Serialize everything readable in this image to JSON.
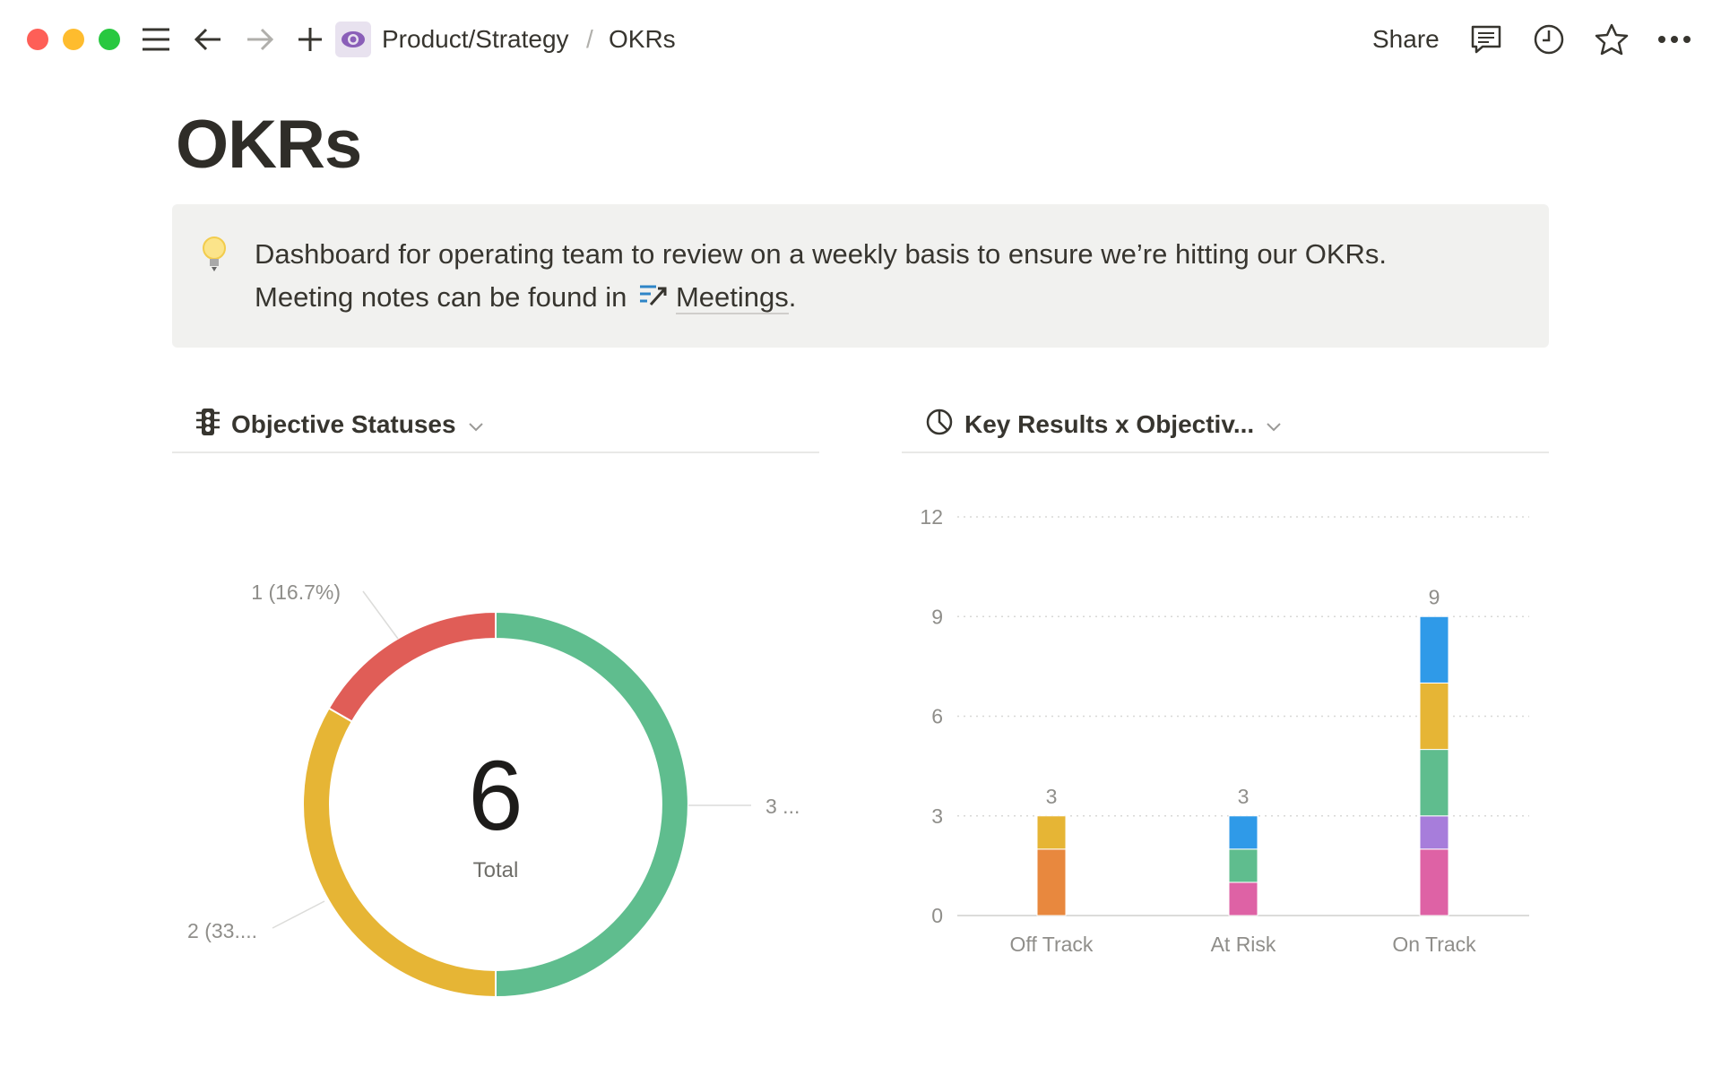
{
  "topbar": {
    "breadcrumb": [
      "Product/Strategy",
      "OKRs"
    ],
    "separator": "/",
    "share_label": "Share",
    "icons": [
      "menu-icon",
      "back-arrow-icon",
      "forward-arrow-icon",
      "plus-icon",
      "eye-icon",
      "comment-icon",
      "clock-icon",
      "star-icon",
      "more-icon"
    ]
  },
  "page": {
    "title": "OKRs",
    "callout": {
      "icon": "lightbulb-icon",
      "line1": "Dashboard for operating team to review on a weekly basis to ensure we’re hitting our OKRs.",
      "line2_prefix": "Meeting notes can be found in",
      "link_label": "Meetings",
      "line2_suffix": "."
    }
  },
  "views": [
    {
      "title": "Objective Statuses",
      "icon": "traffic-light-icon"
    },
    {
      "title": "Key Results x Objectiv...",
      "icon": "pie-chart-icon"
    }
  ],
  "chart_data": [
    {
      "type": "pie",
      "donut": true,
      "center_value": "6",
      "center_label": "Total",
      "slices": [
        {
          "value": 3,
          "label": "3 ...",
          "color": "#5fbd8e"
        },
        {
          "value": 2,
          "label": "2 (33....",
          "color": "#e6b535"
        },
        {
          "value": 1,
          "label": "1 (16.7%)",
          "color": "#e05d57"
        }
      ]
    },
    {
      "type": "bar",
      "stacked": true,
      "categories": [
        "Off Track",
        "At Risk",
        "On Track"
      ],
      "totals": [
        "3",
        "3",
        "9"
      ],
      "ylim": [
        0,
        12
      ],
      "yticks": [
        "0",
        "3",
        "6",
        "9",
        "12"
      ],
      "grid": true,
      "series": [
        {
          "color": "#e8883e",
          "values": [
            2,
            0,
            0
          ]
        },
        {
          "color": "#de62a5",
          "values": [
            0,
            1,
            2
          ]
        },
        {
          "color": "#a77ddb",
          "values": [
            0,
            0,
            1
          ]
        },
        {
          "color": "#5fbd8e",
          "values": [
            0,
            1,
            2
          ]
        },
        {
          "color": "#e6b535",
          "values": [
            1,
            0,
            2
          ]
        },
        {
          "color": "#2f9ae8",
          "values": [
            0,
            1,
            2
          ]
        }
      ]
    }
  ]
}
